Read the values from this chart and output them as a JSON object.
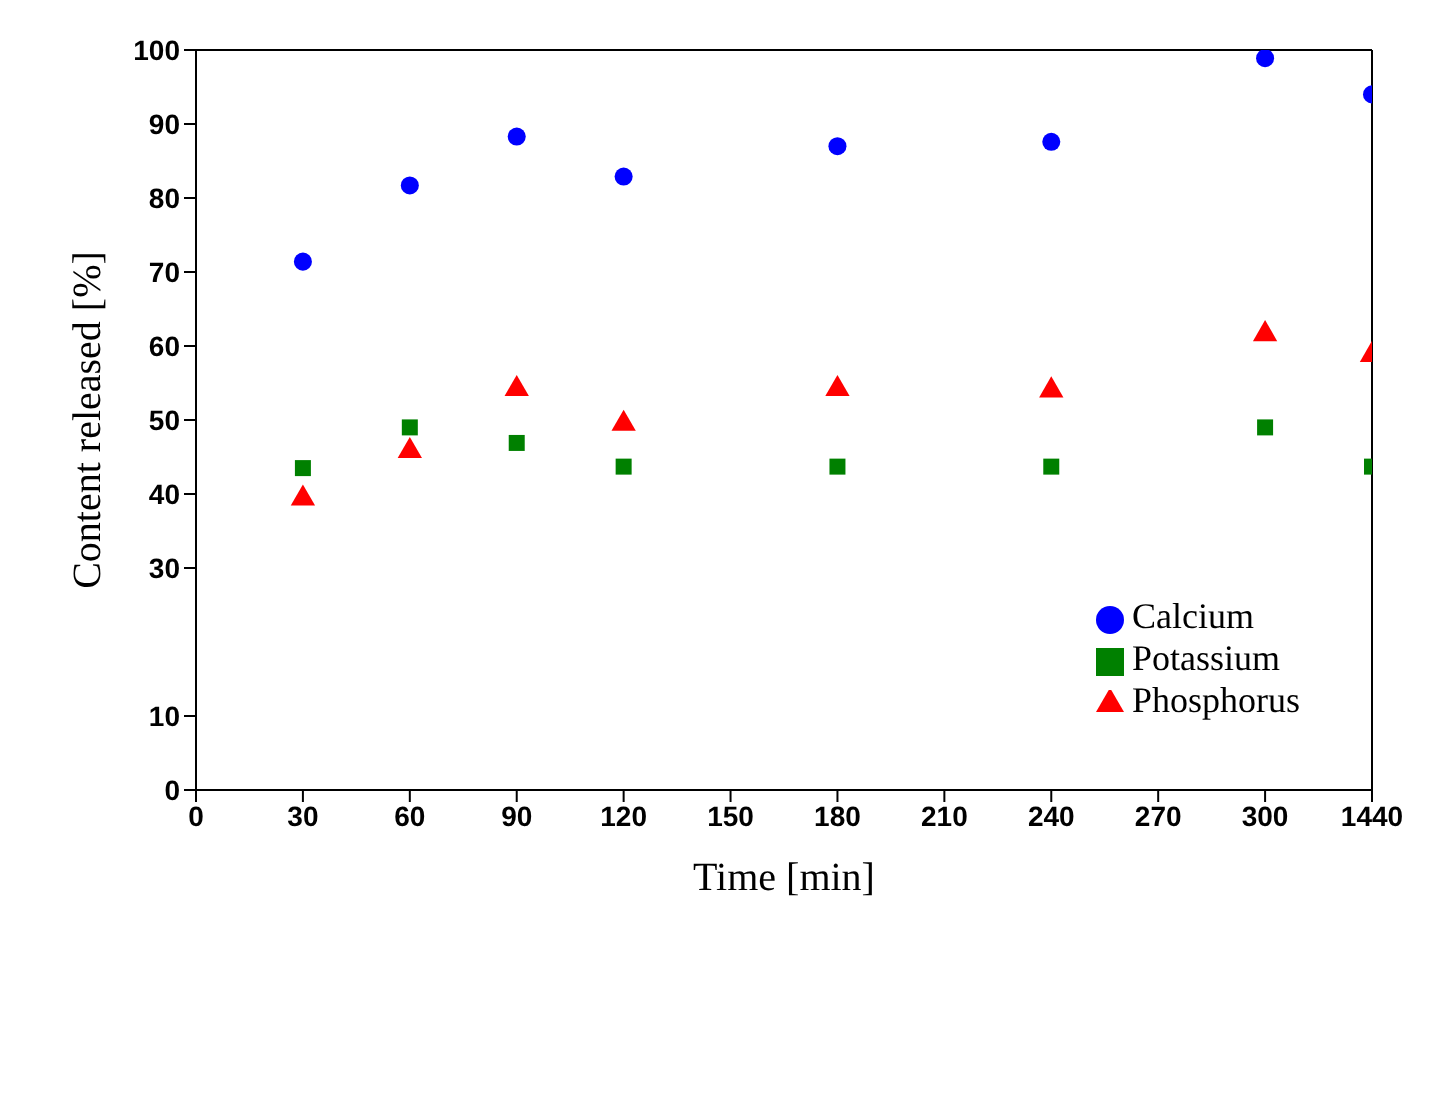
{
  "chart_data": {
    "type": "scatter",
    "xlabel": "Time [min]",
    "ylabel": "Content released [%]",
    "categories": [
      "0",
      "30",
      "60",
      "90",
      "120",
      "150",
      "180",
      "210",
      "240",
      "270",
      "300",
      "1440"
    ],
    "ylim": [
      0,
      100
    ],
    "yticks": [
      0,
      10,
      30,
      40,
      50,
      60,
      70,
      80,
      90,
      100
    ],
    "legend": "bottom right",
    "series": [
      {
        "name": "Calcium",
        "color": "#0000ff",
        "marker": "circle",
        "values": [
          null,
          71.4,
          81.7,
          88.3,
          82.9,
          null,
          87.0,
          null,
          87.6,
          null,
          98.9,
          94.0
        ]
      },
      {
        "name": "Potassium",
        "color": "#008000",
        "marker": "square",
        "values": [
          null,
          43.5,
          49.0,
          46.9,
          43.7,
          null,
          43.7,
          null,
          43.7,
          null,
          49.0,
          43.7
        ]
      },
      {
        "name": "Phosphorus",
        "color": "#ff0000",
        "marker": "triangle",
        "values": [
          null,
          39.4,
          45.8,
          54.2,
          49.5,
          null,
          54.2,
          null,
          54.0,
          null,
          61.6,
          58.8
        ]
      }
    ]
  }
}
